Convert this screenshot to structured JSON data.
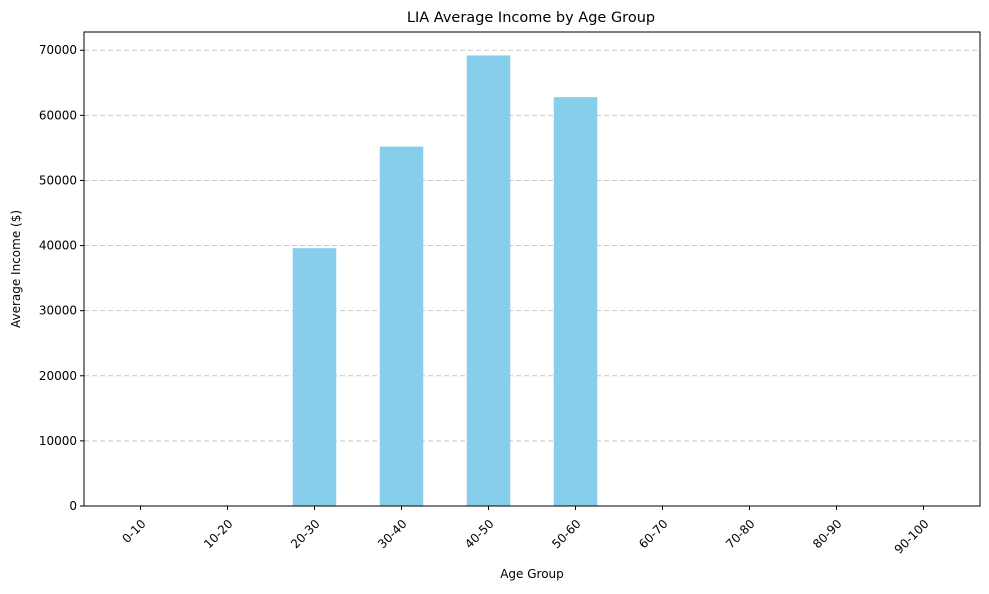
{
  "chart_data": {
    "type": "bar",
    "title": "LIA Average Income by Age Group",
    "xlabel": "Age Group",
    "ylabel": "Average Income ($)",
    "categories": [
      "0-10",
      "10-20",
      "20-30",
      "30-40",
      "40-50",
      "50-60",
      "60-70",
      "70-80",
      "80-90",
      "90-100"
    ],
    "values": [
      0,
      0,
      39600,
      55200,
      69200,
      62800,
      0,
      0,
      0,
      0
    ],
    "ylim": [
      0,
      72800
    ],
    "yticks": [
      0,
      10000,
      20000,
      30000,
      40000,
      50000,
      60000,
      70000
    ],
    "grid": "y-dashed",
    "bar_color": "#87ceeb",
    "grid_color": "#c8c8c8"
  }
}
